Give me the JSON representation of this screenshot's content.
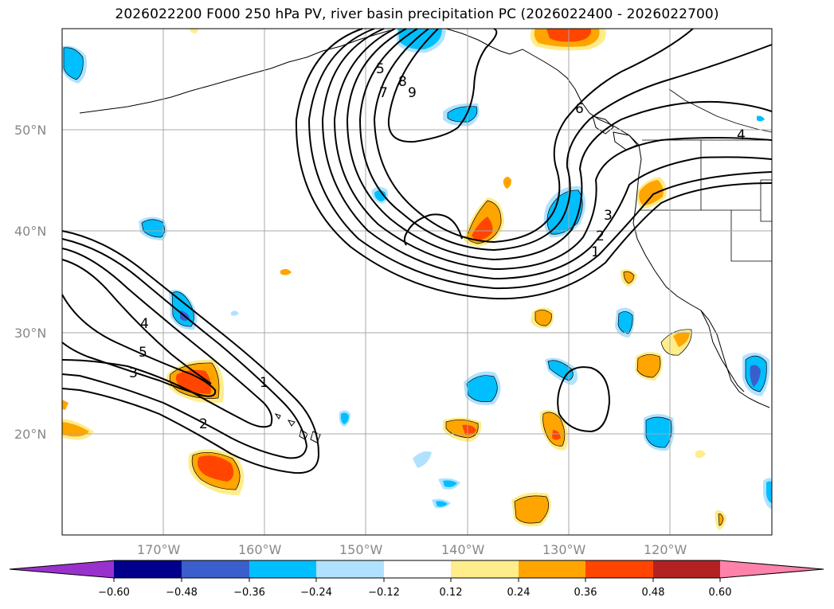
{
  "title": "2026022200 F000 250 hPa PV, river basin precipitation PC (2026022400 - 2026022700)",
  "map": {
    "lat_labels": [
      "50°N",
      "40°N",
      "30°N",
      "20°N"
    ],
    "lon_labels": [
      "170°W",
      "160°W",
      "150°W",
      "140°W",
      "130°W",
      "120°W"
    ],
    "contour_labels": [
      "5",
      "7",
      "8",
      "9",
      "1",
      "2",
      "3",
      "4",
      "5",
      "3",
      "1",
      "2",
      "6",
      "4"
    ],
    "grid": true,
    "coastlines": true
  },
  "colorbar": {
    "ticks": [
      "−0.60",
      "−0.48",
      "−0.36",
      "−0.24",
      "−0.12",
      "0.12",
      "0.24",
      "0.36",
      "0.48",
      "0.60"
    ],
    "colors": [
      "#9932cc",
      "#00008b",
      "#3a5fcd",
      "#00bfff",
      "#b0e2ff",
      "#ffffff",
      "#ffec8b",
      "#ffa500",
      "#ff4500",
      "#b22222",
      "#ff82ab"
    ]
  }
}
